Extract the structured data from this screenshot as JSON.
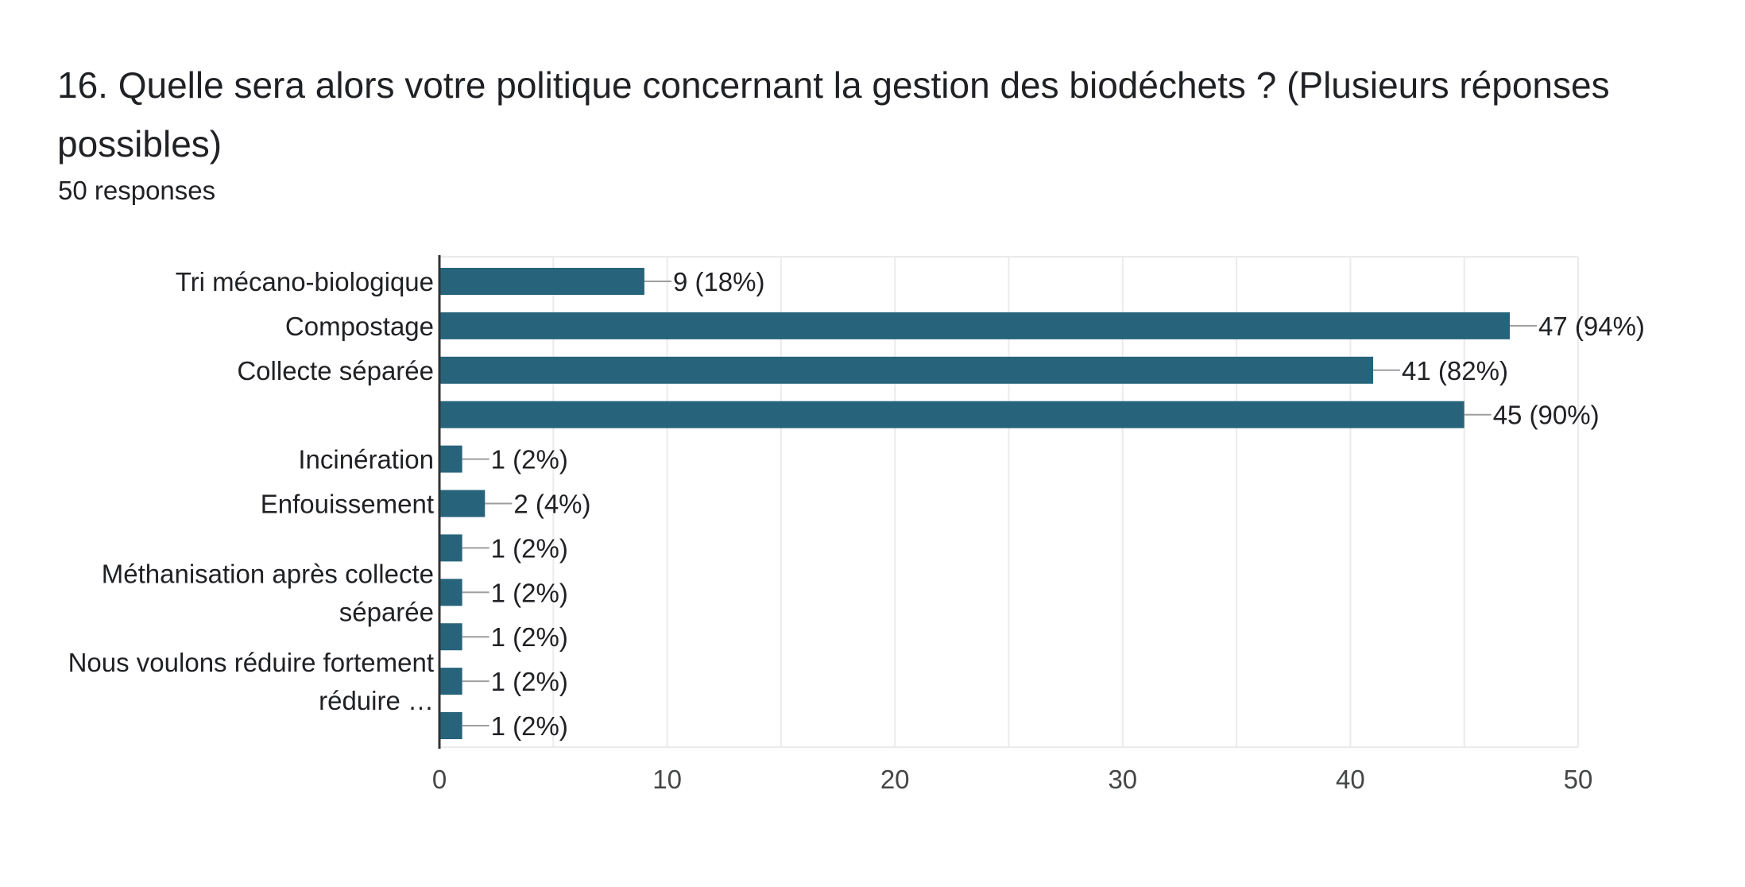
{
  "header": {
    "title": "16. Quelle sera alors votre politique concernant la gestion des biodéchets ? (Plusieurs réponses possibles)",
    "response_count": "50 responses"
  },
  "colors": {
    "bar": "#27647b",
    "grid": "#ebebeb",
    "axis": "#333333",
    "leader": "#9e9e9e"
  },
  "chart_data": {
    "type": "bar",
    "orientation": "horizontal",
    "title": "16. Quelle sera alors votre politique concernant la gestion des biodéchets ? (Plusieurs réponses possibles)",
    "xlim": [
      0,
      50
    ],
    "x_ticks": [
      0,
      10,
      20,
      30,
      40,
      50
    ],
    "grid": true,
    "categories": [
      [
        "Tri mécano-biologique"
      ],
      [
        "Compostage"
      ],
      [
        "Collecte séparée"
      ],
      [],
      [
        "Incinération"
      ],
      [
        "Enfouissement"
      ],
      [],
      [
        "Méthanisation après collecte",
        "séparée"
      ],
      [],
      [
        "Nous voulons réduire fortement",
        "réduire …"
      ],
      []
    ],
    "values": [
      9,
      47,
      41,
      45,
      1,
      2,
      1,
      1,
      1,
      1,
      1
    ],
    "value_labels": [
      "9 (18%)",
      "47 (94%)",
      "41 (82%)",
      "45 (90%)",
      "1 (2%)",
      "2 (4%)",
      "1 (2%)",
      "1 (2%)",
      "1 (2%)",
      "1 (2%)",
      "1 (2%)"
    ]
  }
}
